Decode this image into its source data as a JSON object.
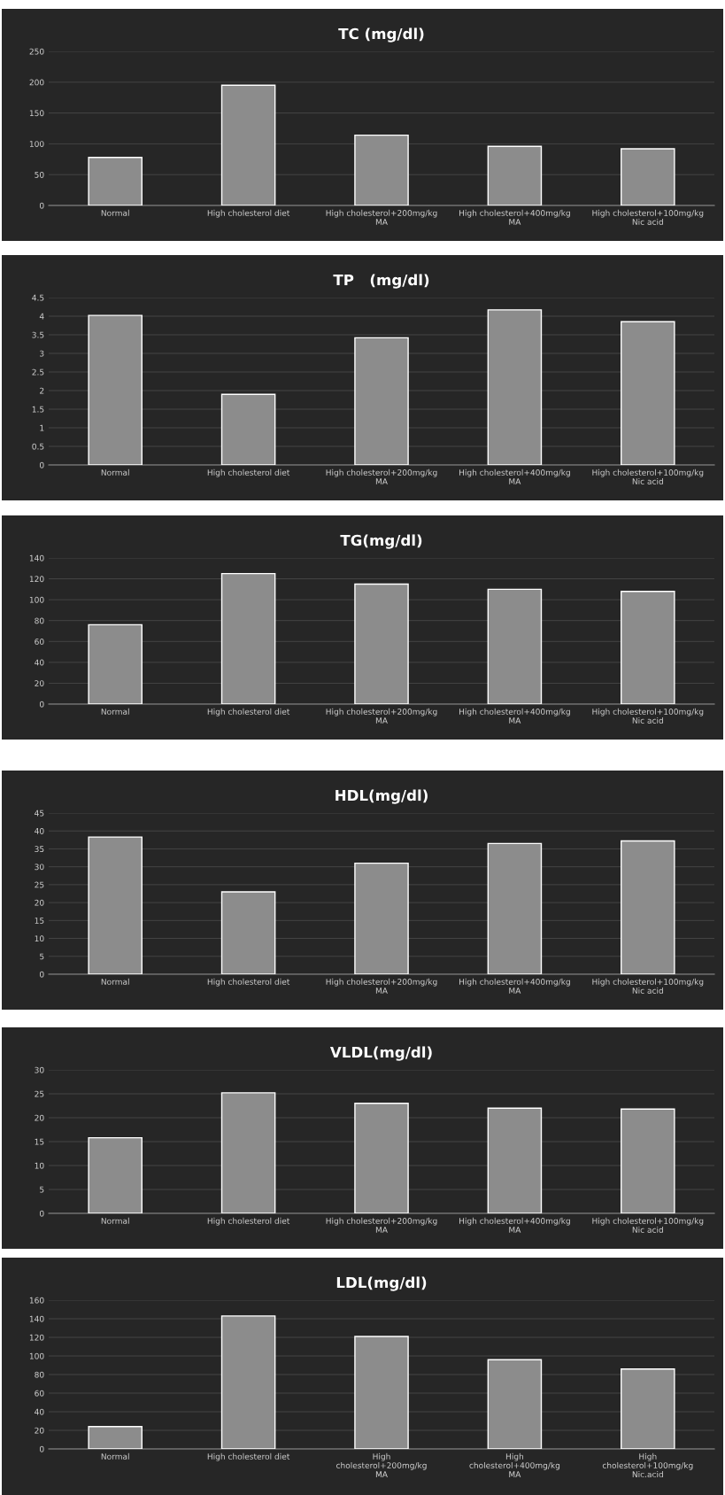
{
  "chart_data": [
    {
      "type": "bar",
      "title": "TC (mg/dl)",
      "categories": [
        "Normal",
        "High cholesterol diet",
        "High cholesterol+200mg/kg\nMA",
        "High cholesterol+400mg/kg\nMA",
        "High cholesterol+100mg/kg\nNic acid"
      ],
      "values": [
        78,
        195,
        114,
        96,
        92
      ],
      "color": "#8c8c8c",
      "ylim": [
        0,
        250
      ],
      "yticks": [
        0,
        50,
        100,
        150,
        200,
        250
      ],
      "grid": "y"
    },
    {
      "type": "bar",
      "title": "TP   (mg/dl)",
      "categories": [
        "Normal",
        "High cholesterol diet",
        "High cholesterol+200mg/kg\nMA",
        "High cholesterol+400mg/kg\nMA",
        "High cholesterol+100mg/kg\nNic acid"
      ],
      "values": [
        4.02,
        1.9,
        3.42,
        4.17,
        3.85
      ],
      "color": "#8c8c8c",
      "ylim": [
        0,
        4.5
      ],
      "yticks": [
        0,
        0.5,
        1,
        1.5,
        2,
        2.5,
        3,
        3.5,
        4,
        4.5
      ],
      "grid": "y"
    },
    {
      "type": "bar",
      "title": "TG(mg/dl)",
      "categories": [
        "Normal",
        "High cholesterol diet",
        "High cholesterol+200mg/kg\nMA",
        "High cholesterol+400mg/kg\nMA",
        "High cholesterol+100mg/kg\nNic acid"
      ],
      "values": [
        76,
        125,
        115,
        110,
        108
      ],
      "color": "#8c8c8c",
      "ylim": [
        0,
        140
      ],
      "yticks": [
        0,
        20,
        40,
        60,
        80,
        100,
        120,
        140
      ],
      "grid": "y"
    },
    {
      "type": "bar",
      "title": "HDL(mg/dl)",
      "categories": [
        "Normal",
        "High cholesterol diet",
        "High cholesterol+200mg/kg\nMA",
        "High cholesterol+400mg/kg\nMA",
        "High cholesterol+100mg/kg\nNic acid"
      ],
      "values": [
        38.3,
        23,
        31,
        36.5,
        37.2
      ],
      "color": "#8c8c8c",
      "ylim": [
        0,
        45
      ],
      "yticks": [
        0,
        5,
        10,
        15,
        20,
        25,
        30,
        35,
        40,
        45
      ],
      "grid": "y"
    },
    {
      "type": "bar",
      "title": "VLDL(mg/dl)",
      "categories": [
        "Normal",
        "High cholesterol diet",
        "High cholesterol+200mg/kg\nMA",
        "High cholesterol+400mg/kg\nMA",
        "High cholesterol+100mg/kg\nNic acid"
      ],
      "values": [
        15.8,
        25.2,
        23,
        22,
        21.8
      ],
      "color": "#8c8c8c",
      "ylim": [
        0,
        30
      ],
      "yticks": [
        0,
        5,
        10,
        15,
        20,
        25,
        30
      ],
      "grid": "y"
    },
    {
      "type": "bar",
      "title": "LDL(mg/dl)",
      "categories": [
        "Normal",
        "High cholesterol diet",
        "High\ncholesterol+200mg/kg\nMA",
        "High\ncholesterol+400mg/kg\nMA",
        "High\ncholesterol+100mg/kg\nNic.acid"
      ],
      "values": [
        24,
        143,
        121,
        96,
        86
      ],
      "color": "#8c8c8c",
      "ylim": [
        0,
        160
      ],
      "yticks": [
        0,
        20,
        40,
        60,
        80,
        100,
        120,
        140,
        160
      ],
      "grid": "y"
    }
  ]
}
